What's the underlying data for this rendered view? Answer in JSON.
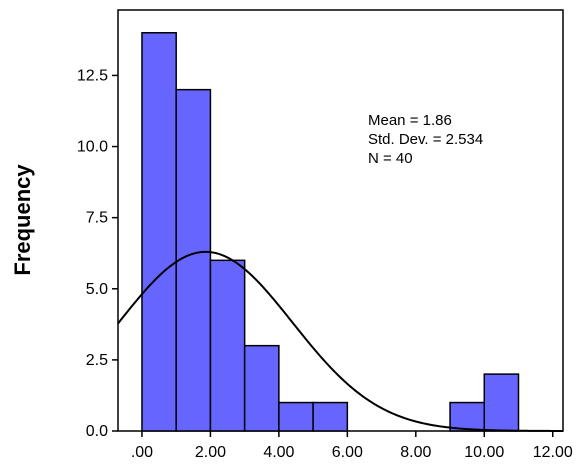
{
  "chart_data": {
    "type": "bar",
    "subtype": "histogram",
    "xlabel": "",
    "ylabel": "Frequency",
    "xlim": [
      -0.7,
      12.3
    ],
    "ylim": [
      0,
      14.8
    ],
    "x_ticks": [
      0,
      2,
      4,
      6,
      8,
      10,
      12
    ],
    "x_tick_labels": [
      ".00",
      "2.00",
      "4.00",
      "6.00",
      "8.00",
      "10.00",
      "12.00"
    ],
    "y_ticks": [
      0,
      2.5,
      5,
      7.5,
      10,
      12.5
    ],
    "y_tick_labels": [
      "0.0",
      "2.5",
      "5.0",
      "7.5",
      "10.0",
      "12.5"
    ],
    "bins": [
      {
        "from": 0,
        "to": 1,
        "count": 14
      },
      {
        "from": 1,
        "to": 2,
        "count": 12
      },
      {
        "from": 2,
        "to": 3,
        "count": 6
      },
      {
        "from": 3,
        "to": 4,
        "count": 3
      },
      {
        "from": 4,
        "to": 5,
        "count": 1
      },
      {
        "from": 5,
        "to": 6,
        "count": 1
      },
      {
        "from": 9,
        "to": 10,
        "count": 1
      },
      {
        "from": 10,
        "to": 11,
        "count": 2
      }
    ],
    "normal_curve": {
      "mean": 1.86,
      "sd": 2.534,
      "n": 40,
      "bin_width": 1
    },
    "stats_lines": [
      "Mean = 1.86",
      "Std. Dev. = 2.534",
      "N = 40"
    ],
    "colors": {
      "bar_fill": "#6666ff",
      "bar_stroke": "#000000",
      "curve": "#000000"
    },
    "grid": false,
    "legend": "none"
  }
}
